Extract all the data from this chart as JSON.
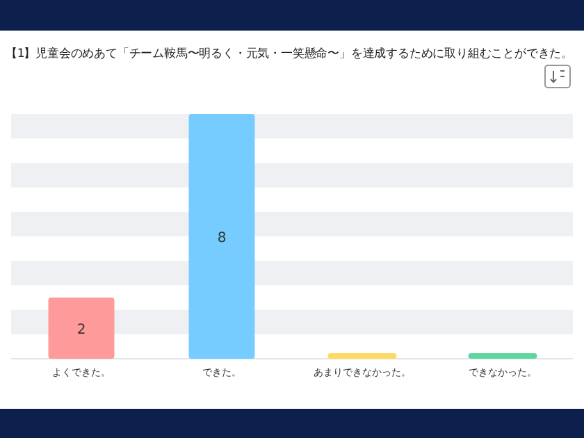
{
  "chart_data": {
    "type": "bar",
    "title": "【1】児童会のめあて「チーム鞍馬〜明るく・元気・一笑懸命〜」を達成するために取り組むことができた。",
    "categories": [
      "よくできた。",
      "できた。",
      "あまりできなかった。",
      "できなかった。"
    ],
    "values": [
      2,
      8,
      0,
      0
    ],
    "colors": [
      "#ff9a9a",
      "#77ccff",
      "#ffd966",
      "#5fd6a0"
    ],
    "value_labels": [
      "2",
      "8",
      null,
      null
    ]
  }
}
